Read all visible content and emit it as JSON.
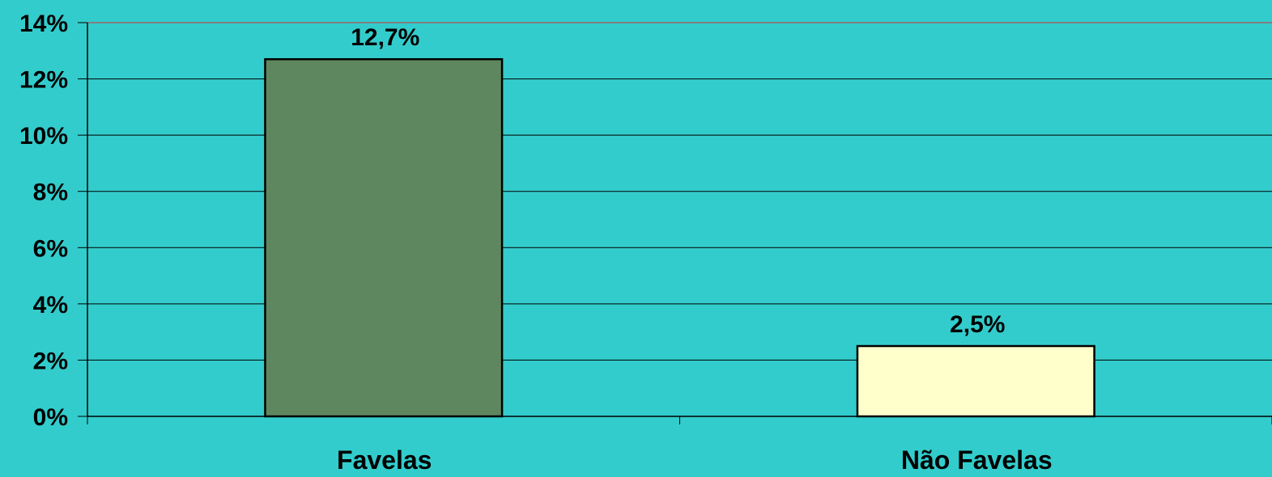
{
  "chart_data": {
    "type": "bar",
    "categories": [
      "Favelas",
      "Não Favelas"
    ],
    "values": [
      12.7,
      2.5
    ],
    "value_labels": [
      "12,7%",
      "2,5%"
    ],
    "ylim": [
      0,
      14
    ],
    "y_ticks": [
      0,
      2,
      4,
      6,
      8,
      10,
      12,
      14
    ],
    "y_tick_labels": [
      "0%",
      "2%",
      "4%",
      "6%",
      "8%",
      "10%",
      "12%",
      "14%"
    ],
    "bar_colors": [
      "#5F875F",
      "#FFFFCC"
    ],
    "background_color": "#33CCCC",
    "grid": true,
    "legend": "none",
    "title": "",
    "xlabel": "",
    "ylabel": ""
  }
}
